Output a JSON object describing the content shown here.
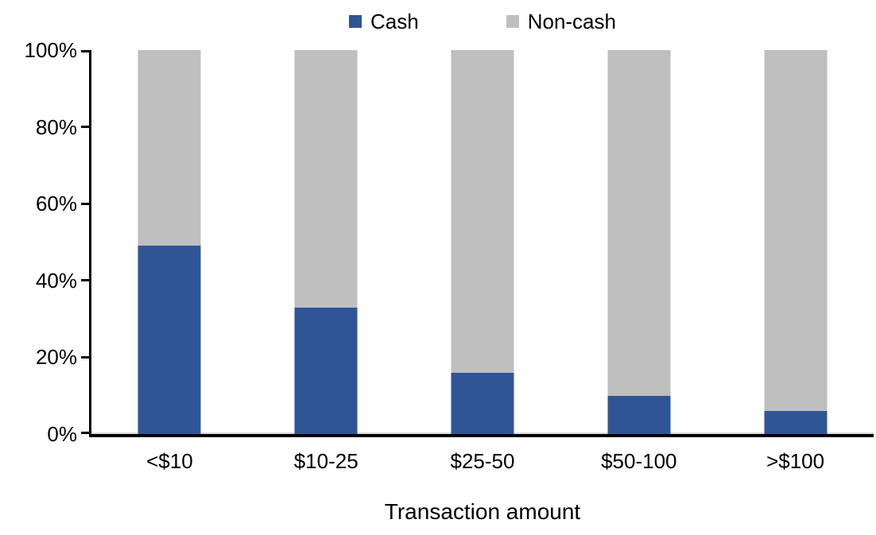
{
  "chart_data": {
    "type": "bar",
    "variant": "stacked-100-percent",
    "title": "",
    "xlabel": "Transaction amount",
    "ylabel": "",
    "categories": [
      "<$10",
      "$10-25",
      "$25-50",
      "$50-100",
      ">$100"
    ],
    "series": [
      {
        "name": "Cash",
        "color": "#2F5597",
        "values": [
          49,
          33,
          16,
          10,
          6
        ]
      },
      {
        "name": "Non-cash",
        "color": "#BFBFBF",
        "values": [
          51,
          67,
          84,
          90,
          94
        ]
      }
    ],
    "ylim": [
      0,
      100
    ],
    "yticks": [
      "0%",
      "20%",
      "40%",
      "60%",
      "80%",
      "100%"
    ],
    "legend_position": "top-center",
    "grid": false,
    "axis_color": "#000000"
  }
}
